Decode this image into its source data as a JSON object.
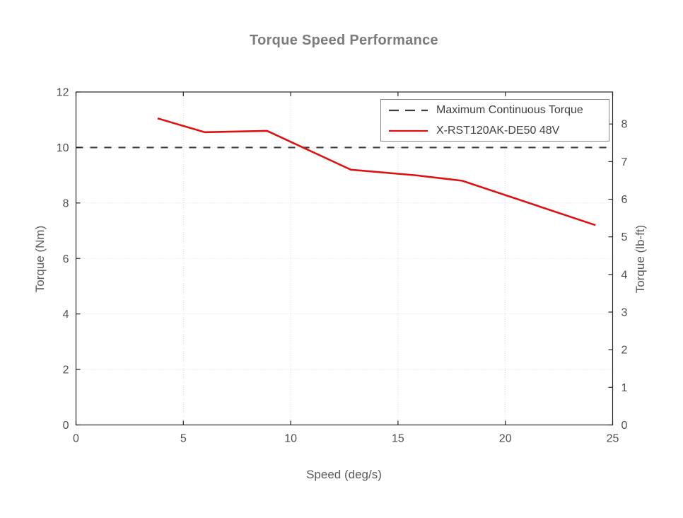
{
  "figure": {
    "background": "#ffffff",
    "title_color": "#7b7b7b",
    "axis_color": "#252525",
    "tick_label_color": "#4f4f4f",
    "axis_label_color": "#5a5a5a",
    "grid_color": "#d9d9e3",
    "legend_border_color": "#888888"
  },
  "chart_data": {
    "type": "line",
    "title": "Torque Speed Performance",
    "xlabel": "Speed (deg/s)",
    "ylabel_left": "Torque (Nm)",
    "ylabel_right": "Torque (lb-ft)",
    "xlim": [
      0,
      25
    ],
    "ylim_left": [
      0,
      12
    ],
    "ylim_right": [
      0,
      8.8507
    ],
    "x_ticks": [
      0,
      5,
      10,
      15,
      20,
      25
    ],
    "y_ticks_left": [
      0,
      2,
      4,
      6,
      8,
      10,
      12
    ],
    "y_ticks_right": [
      0,
      1,
      2,
      3,
      4,
      5,
      6,
      7,
      8
    ],
    "grid": true,
    "legend_position": "upper-right",
    "series": [
      {
        "name": "Maximum Continuous Torque",
        "style": "dashed",
        "color": "#3d3d3d",
        "x": [
          0,
          25
        ],
        "y": [
          10,
          10
        ]
      },
      {
        "name": "X-RST120AK-DE50 48V",
        "style": "solid",
        "color": "#dd1111",
        "x": [
          3.8,
          6.0,
          8.9,
          12.8,
          15.8,
          18.0,
          24.2
        ],
        "y": [
          11.05,
          10.55,
          10.6,
          9.2,
          9.0,
          8.8,
          7.2
        ]
      }
    ]
  }
}
